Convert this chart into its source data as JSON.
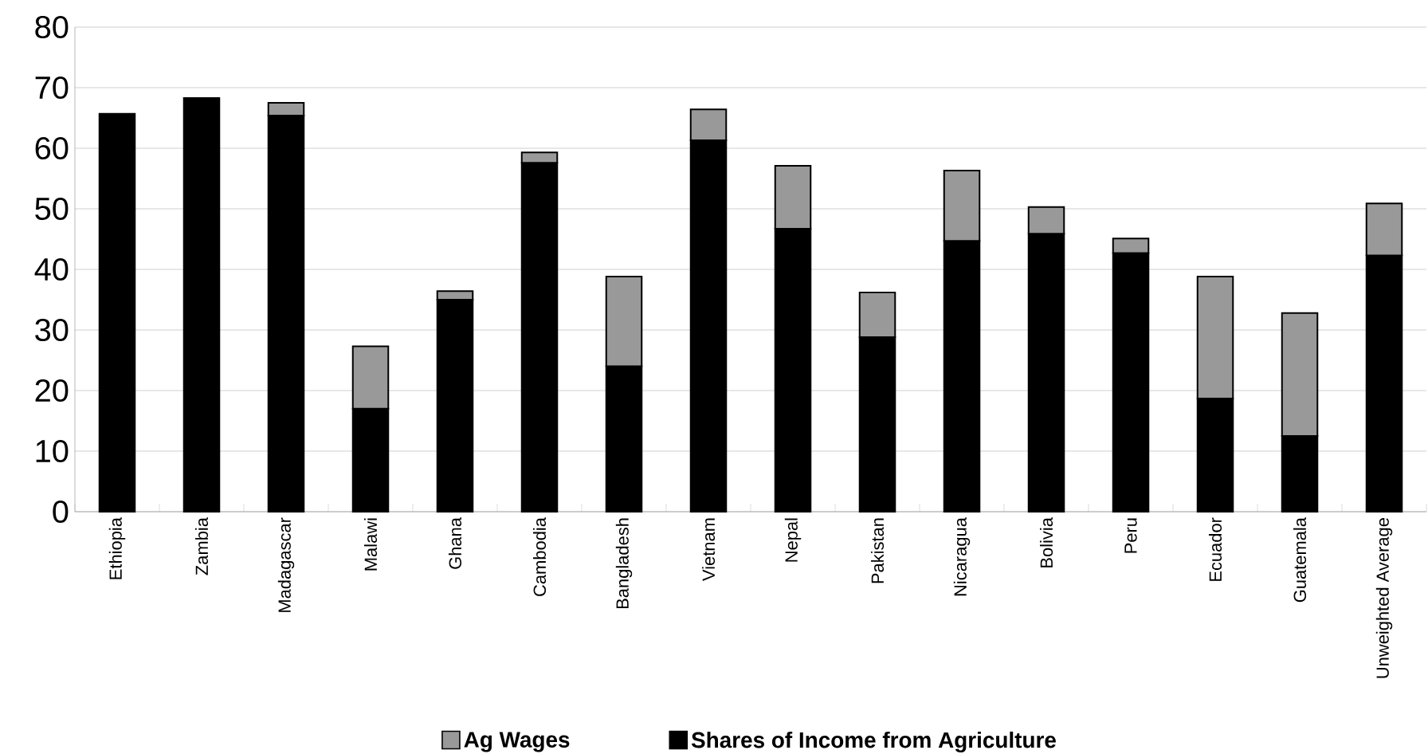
{
  "chart_data": {
    "type": "bar",
    "stacked": true,
    "categories": [
      "Ethiopia",
      "Zambia",
      "Madagascar",
      "Malawi",
      "Ghana",
      "Cambodia",
      "Bangladesh",
      "Vietnam",
      "Nepal",
      "Pakistan",
      "Nicaragua",
      "Bolivia",
      "Peru",
      "Ecuador",
      "Guatemala",
      "Unweighted Average"
    ],
    "series": [
      {
        "name": "Shares of Income from Agriculture",
        "color": "#000000",
        "values": [
          65.7,
          68.3,
          65.4,
          17.0,
          35.0,
          57.6,
          24.0,
          61.3,
          46.7,
          28.8,
          44.7,
          45.9,
          42.7,
          18.7,
          12.5,
          42.3
        ]
      },
      {
        "name": "Ag Wages",
        "color": "#999999",
        "values": [
          null,
          null,
          2.1,
          10.3,
          1.4,
          1.7,
          14.8,
          5.1,
          10.4,
          7.4,
          11.6,
          4.4,
          2.4,
          20.1,
          20.3,
          8.6
        ]
      }
    ],
    "ylim": [
      0,
      80
    ],
    "yticks": [
      0,
      10,
      20,
      30,
      40,
      50,
      60,
      70,
      80
    ],
    "grid": "y",
    "legend": "bottom"
  }
}
